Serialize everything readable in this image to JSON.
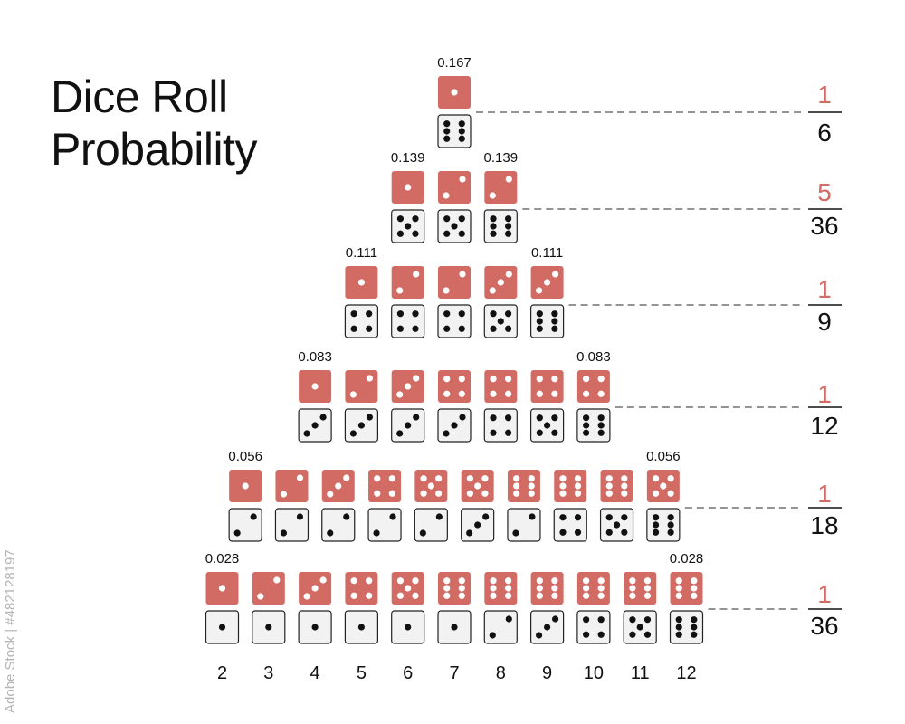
{
  "title": [
    "Dice Roll",
    "Probability"
  ],
  "watermark": "Adobe Stock | #482128197",
  "colors": {
    "red_die": "#d26b63",
    "white_die": "#f2f2f2",
    "pip_white": "#ffffff",
    "pip_black": "#111111",
    "fraction_numerator": "#d26b63",
    "line": "#555555"
  },
  "sums": [
    "2",
    "3",
    "4",
    "5",
    "6",
    "7",
    "8",
    "9",
    "10",
    "11",
    "12"
  ],
  "levels": [
    {
      "probability": "0.167",
      "fraction": {
        "numerator": "1",
        "denominator": "6"
      },
      "pairs": [
        [
          1,
          6
        ]
      ],
      "label_positions": [
        "0.167"
      ]
    },
    {
      "probability": "0.139",
      "fraction": {
        "numerator": "5",
        "denominator": "36"
      },
      "pairs": [
        [
          1,
          5
        ],
        [
          2,
          5
        ],
        [
          2,
          6
        ]
      ],
      "label_positions": [
        "0.139",
        "",
        "0.139"
      ]
    },
    {
      "probability": "0.111",
      "fraction": {
        "numerator": "1",
        "denominator": "9"
      },
      "pairs": [
        [
          1,
          4
        ],
        [
          2,
          4
        ],
        [
          2,
          4
        ],
        [
          3,
          5
        ],
        [
          3,
          6
        ]
      ],
      "label_positions": [
        "0.111",
        "",
        "",
        "",
        "0.111"
      ]
    },
    {
      "probability": "0.083",
      "fraction": {
        "numerator": "1",
        "denominator": "12"
      },
      "pairs": [
        [
          1,
          3
        ],
        [
          2,
          3
        ],
        [
          3,
          3
        ],
        [
          4,
          3
        ],
        [
          4,
          4
        ],
        [
          4,
          5
        ],
        [
          4,
          6
        ]
      ],
      "label_positions": [
        "0.083",
        "",
        "",
        "",
        "",
        "",
        "0.083"
      ]
    },
    {
      "probability": "0.056",
      "fraction": {
        "numerator": "1",
        "denominator": "18"
      },
      "pairs": [
        [
          1,
          2
        ],
        [
          2,
          2
        ],
        [
          3,
          2
        ],
        [
          4,
          2
        ],
        [
          5,
          2
        ],
        [
          5,
          3
        ],
        [
          6,
          2
        ],
        [
          6,
          4
        ],
        [
          6,
          5
        ],
        [
          5,
          6
        ]
      ],
      "label_positions": [
        "0.056",
        "",
        "",
        "",
        "",
        "",
        "",
        "",
        "",
        "0.056"
      ]
    },
    {
      "probability": "0.028",
      "fraction": {
        "numerator": "1",
        "denominator": "36"
      },
      "pairs": [
        [
          1,
          1
        ],
        [
          2,
          1
        ],
        [
          3,
          1
        ],
        [
          4,
          1
        ],
        [
          5,
          1
        ],
        [
          6,
          1
        ],
        [
          6,
          2
        ],
        [
          6,
          3
        ],
        [
          6,
          4
        ],
        [
          6,
          5
        ],
        [
          6,
          6
        ]
      ],
      "label_positions": [
        "0.028",
        "",
        "",
        "",
        "",
        "",
        "",
        "",
        "",
        "",
        "0.028"
      ]
    }
  ],
  "chart_data": {
    "type": "diagram",
    "title": "Dice Roll Probability",
    "x": [
      2,
      3,
      4,
      5,
      6,
      7,
      8,
      9,
      10,
      11,
      12
    ],
    "probabilities": [
      0.028,
      0.056,
      0.083,
      0.111,
      0.139,
      0.167,
      0.139,
      0.111,
      0.083,
      0.056,
      0.028
    ],
    "fractions": [
      "1/36",
      "1/18",
      "1/12",
      "1/9",
      "5/36",
      "1/6",
      "5/36",
      "1/9",
      "1/12",
      "1/18",
      "1/36"
    ]
  }
}
